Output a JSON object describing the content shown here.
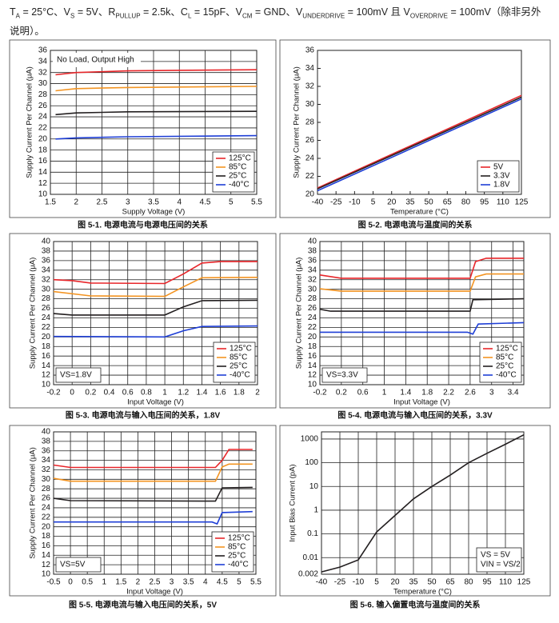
{
  "conditions": [
    "T",
    "A",
    " = 25°C、V",
    "S",
    " = 5V、R",
    "PULLUP",
    " = 2.5k、C",
    "L",
    " = 15pF、V",
    "CM",
    " = GND、V",
    "UNDERDRIVE",
    " = 100mV 且 V",
    "OVERDRIVE",
    " = 100mV（除非另外说明）。"
  ],
  "chart_data": [
    {
      "type": "line",
      "title": "图 5-1. 电源电流与电源电压间的关系",
      "xlabel": "Supply Voltage (V)",
      "ylabel": "Supply Current Per Channel (μA)",
      "xlim": [
        1.5,
        5.5
      ],
      "xticks": [
        1.5,
        2,
        2.5,
        3,
        3.5,
        4,
        4.5,
        5,
        5.5
      ],
      "ylim": [
        10,
        36
      ],
      "yticks": [
        10,
        12,
        14,
        16,
        18,
        20,
        22,
        24,
        26,
        28,
        30,
        32,
        34,
        36
      ],
      "grid": true,
      "legend": "lower right",
      "annotations": [
        "No Load, Output High"
      ],
      "annotation_loc": "upper left",
      "series": [
        {
          "name": "125°C",
          "color": "#e8262a",
          "x": [
            1.6,
            2,
            3,
            4,
            5.5
          ],
          "values": [
            31.6,
            32.0,
            32.3,
            32.4,
            32.5
          ]
        },
        {
          "name": "85°C",
          "color": "#f39422",
          "x": [
            1.6,
            2,
            3,
            5.5
          ],
          "values": [
            28.7,
            29.1,
            29.3,
            29.5
          ]
        },
        {
          "name": "25°C",
          "color": "#231f20",
          "x": [
            1.6,
            2,
            3,
            5.5
          ],
          "values": [
            24.4,
            24.7,
            24.9,
            25.0
          ]
        },
        {
          "name": "-40°C",
          "color": "#1f3fd6",
          "x": [
            1.6,
            2,
            3,
            5.5
          ],
          "values": [
            20.0,
            20.2,
            20.4,
            20.6
          ]
        }
      ]
    },
    {
      "type": "line",
      "title": "图 5-2. 电源电流与温度间的关系",
      "xlabel": "Temperature (°C)",
      "ylabel": "Supply Current Per Channel (μA)",
      "xlim": [
        -40,
        125
      ],
      "xticks": [
        -40,
        -25,
        -10,
        5,
        20,
        35,
        50,
        65,
        80,
        95,
        110,
        125
      ],
      "ylim": [
        20,
        36
      ],
      "yticks": [
        20,
        22,
        24,
        26,
        28,
        30,
        32,
        34,
        36
      ],
      "grid": false,
      "legend": "lower right",
      "series": [
        {
          "name": "5V",
          "color": "#e8262a",
          "x": [
            -40,
            125
          ],
          "values": [
            20.7,
            31.0
          ]
        },
        {
          "name": "3.3V",
          "color": "#231f20",
          "x": [
            -40,
            125
          ],
          "values": [
            20.6,
            30.8
          ]
        },
        {
          "name": "1.8V",
          "color": "#1f3fd6",
          "x": [
            -40,
            125
          ],
          "values": [
            20.4,
            30.6
          ]
        }
      ]
    },
    {
      "type": "line",
      "title": "图 5-3. 电源电流与输入电压间的关系，1.8V",
      "xlabel": "Input Voltage (V)",
      "ylabel": "Supply Current Per Channel (μA)",
      "xlim": [
        -0.2,
        2
      ],
      "xticks": [
        -0.2,
        0,
        0.2,
        0.4,
        0.6,
        0.8,
        1,
        1.2,
        1.4,
        1.6,
        1.8,
        2
      ],
      "ylim": [
        10,
        40
      ],
      "yticks": [
        10,
        12,
        14,
        16,
        18,
        20,
        22,
        24,
        26,
        28,
        30,
        32,
        34,
        36,
        38,
        40
      ],
      "grid": true,
      "legend": "lower right",
      "annotations": [
        "VS=1.8V"
      ],
      "annotation_loc": "lower left",
      "series": [
        {
          "name": "125°C",
          "color": "#e8262a",
          "x": [
            -0.2,
            0,
            0.2,
            1,
            1.2,
            1.4,
            1.6,
            2
          ],
          "values": [
            32.0,
            31.8,
            31.3,
            31.2,
            33.2,
            35.5,
            35.8,
            35.8
          ]
        },
        {
          "name": "85°C",
          "color": "#f39422",
          "x": [
            -0.2,
            0.2,
            1,
            1.2,
            1.4,
            2
          ],
          "values": [
            29.5,
            28.6,
            28.5,
            30.5,
            32.4,
            32.5
          ]
        },
        {
          "name": "25°C",
          "color": "#231f20",
          "x": [
            -0.2,
            0,
            1,
            1.2,
            1.4,
            2
          ],
          "values": [
            24.9,
            24.6,
            24.6,
            26.3,
            27.6,
            27.7
          ]
        },
        {
          "name": "-40°C",
          "color": "#1f3fd6",
          "x": [
            -0.2,
            1,
            1.2,
            1.4,
            2
          ],
          "values": [
            20.1,
            20.0,
            21.3,
            22.2,
            22.3
          ]
        }
      ]
    },
    {
      "type": "line",
      "title": "图 5-4. 电源电流与输入电压间的关系，3.3V",
      "xlabel": "Input Voltage (V)",
      "ylabel": "Supply Current Per Channel (μA)",
      "xlim": [
        -0.2,
        3.6
      ],
      "xticks": [
        -0.2,
        0.2,
        0.6,
        1,
        1.4,
        1.8,
        2.2,
        2.6,
        3,
        3.4
      ],
      "ylim": [
        10,
        40
      ],
      "yticks": [
        10,
        12,
        14,
        16,
        18,
        20,
        22,
        24,
        26,
        28,
        30,
        32,
        34,
        36,
        38,
        40
      ],
      "grid": true,
      "legend": "lower right",
      "annotations": [
        "VS=3.3V"
      ],
      "annotation_loc": "lower left",
      "series": [
        {
          "name": "125°C",
          "color": "#e8262a",
          "x": [
            -0.2,
            0.2,
            2.6,
            2.7,
            2.9,
            3.6
          ],
          "values": [
            33.0,
            32.3,
            32.3,
            35.8,
            36.5,
            36.5
          ]
        },
        {
          "name": "85°C",
          "color": "#f39422",
          "x": [
            -0.2,
            0.2,
            2.6,
            2.7,
            2.9,
            3.6
          ],
          "values": [
            30.1,
            29.6,
            29.6,
            32.6,
            33.2,
            33.2
          ]
        },
        {
          "name": "25°C",
          "color": "#231f20",
          "x": [
            -0.2,
            0,
            2.6,
            2.65,
            3.6
          ],
          "values": [
            25.8,
            25.4,
            25.4,
            27.8,
            28.0
          ]
        },
        {
          "name": "-40°C",
          "color": "#1f3fd6",
          "x": [
            -0.2,
            2.55,
            2.65,
            2.75,
            3.6
          ],
          "values": [
            21.0,
            21.0,
            20.6,
            22.7,
            23.0
          ]
        }
      ]
    },
    {
      "type": "line",
      "title": "图 5-5. 电源电流与输入电压间的关系，5V",
      "xlabel": "Input Voltage (V)",
      "ylabel": "Supply Current Per Channel (μA)",
      "xlim": [
        -0.5,
        5.5
      ],
      "xticks": [
        -0.5,
        0,
        0.5,
        1,
        1.5,
        2,
        2.5,
        3,
        3.5,
        4,
        4.5,
        5,
        5.5
      ],
      "ylim": [
        10,
        40
      ],
      "yticks": [
        10,
        12,
        14,
        16,
        18,
        20,
        22,
        24,
        26,
        28,
        30,
        32,
        34,
        36,
        38,
        40
      ],
      "grid": true,
      "legend": "lower right",
      "annotations": [
        "VS=5V"
      ],
      "annotation_loc": "lower left",
      "series": [
        {
          "name": "125°C",
          "color": "#e8262a",
          "x": [
            -0.5,
            0,
            4.3,
            4.5,
            4.7,
            5.4
          ],
          "values": [
            33.0,
            32.5,
            32.5,
            34.0,
            36.3,
            36.3
          ]
        },
        {
          "name": "85°C",
          "color": "#f39422",
          "x": [
            -0.5,
            0,
            4.3,
            4.5,
            4.7,
            5.4
          ],
          "values": [
            30.2,
            29.6,
            29.6,
            32.6,
            33.2,
            33.2
          ]
        },
        {
          "name": "25°C",
          "color": "#231f20",
          "x": [
            -0.5,
            0,
            4.3,
            4.5,
            5.4
          ],
          "values": [
            26.0,
            25.5,
            25.4,
            28.2,
            28.3
          ]
        },
        {
          "name": "-40°C",
          "color": "#1f3fd6",
          "x": [
            -0.5,
            4.2,
            4.35,
            4.5,
            5.4
          ],
          "values": [
            21.0,
            21.0,
            20.6,
            23.0,
            23.2
          ]
        }
      ]
    },
    {
      "type": "line",
      "title": "图 5-6. 输入偏置电流与温度间的关系",
      "xlabel": "Temperature (°C)",
      "ylabel": "Input Bias Current (pA)",
      "xlim": [
        -40,
        125
      ],
      "xticks": [
        -40,
        -25,
        -10,
        5,
        20,
        35,
        50,
        65,
        80,
        95,
        110,
        125
      ],
      "ylim": [
        0.002,
        2000
      ],
      "yticks": [
        0.002,
        0.01,
        0.1,
        1,
        10,
        100,
        1000
      ],
      "yscale": "log",
      "grid": true,
      "annotations": [
        "VS = 5V",
        "VIN = VS/2"
      ],
      "annotation_loc": "lower right",
      "series": [
        {
          "color": "#231f20",
          "x": [
            -40,
            -25,
            -10,
            5,
            20,
            35,
            50,
            65,
            80,
            95,
            110,
            125
          ],
          "values": [
            0.0025,
            0.004,
            0.008,
            0.12,
            0.6,
            3,
            10,
            30,
            100,
            250,
            600,
            1500
          ]
        }
      ]
    }
  ]
}
